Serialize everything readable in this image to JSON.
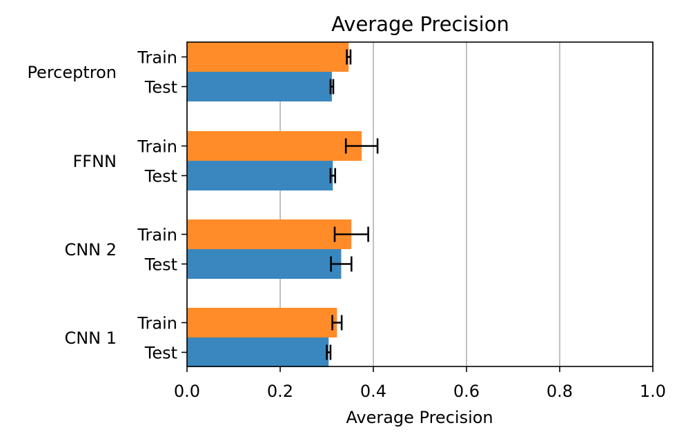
{
  "chart_data": {
    "type": "bar",
    "orientation": "horizontal",
    "title": "Average Precision",
    "xlabel": "Average Precision",
    "ylabel": "",
    "xlim": [
      0,
      1.0
    ],
    "xticks": [
      "0.0",
      "0.2",
      "0.4",
      "0.6",
      "0.8",
      "1.0"
    ],
    "grid": "x",
    "models": [
      "Perceptron",
      "FFNN",
      "CNN 2",
      "CNN 1"
    ],
    "series": [
      {
        "name": "Train",
        "color": "#ff8c28",
        "values": [
          0.347,
          0.375,
          0.353,
          0.322
        ],
        "errors": [
          0.004,
          0.034,
          0.036,
          0.01
        ]
      },
      {
        "name": "Test",
        "color": "#3987be",
        "values": [
          0.311,
          0.313,
          0.331,
          0.304
        ],
        "errors": [
          0.003,
          0.005,
          0.022,
          0.004
        ]
      }
    ]
  }
}
